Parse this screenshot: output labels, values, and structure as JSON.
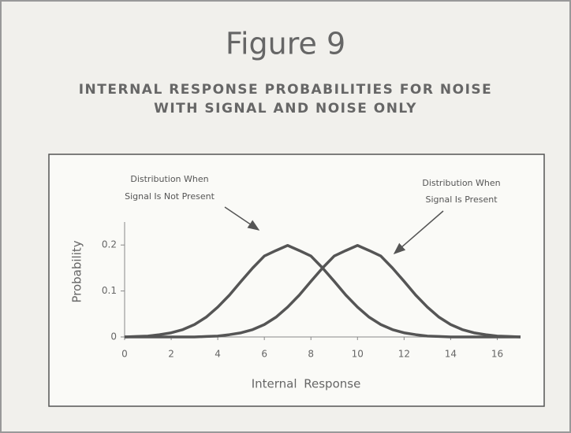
{
  "chart_data": {
    "type": "line",
    "title": "Figure 9",
    "subtitle": [
      "INTERNAL RESPONSE PROBABILITIES FOR NOISE",
      "WITH SIGNAL AND NOISE ONLY"
    ],
    "annotations": [
      [
        "Distribution When",
        "Signal Is Not Present"
      ],
      [
        "Distribution When",
        "Signal Is Present"
      ]
    ],
    "x_label": "Internal Response",
    "y_label": "Probability",
    "x": [
      0,
      0.5,
      1,
      1.5,
      2,
      2.5,
      3,
      3.5,
      4,
      4.5,
      5,
      5.5,
      6,
      6.5,
      7,
      7.5,
      8,
      8.5,
      9,
      9.5,
      10,
      10.5,
      11,
      11.5,
      12,
      12.5,
      13,
      13.5,
      14,
      14.5,
      15,
      15.5,
      16,
      16.5,
      17
    ],
    "series": [
      {
        "color": "#555555",
        "values": [
          0,
          0.001,
          0.002,
          0.005,
          0.009,
          0.016,
          0.027,
          0.043,
          0.065,
          0.091,
          0.121,
          0.15,
          0.176,
          0.188,
          0.199,
          0.188,
          0.176,
          0.15,
          0.121,
          0.091,
          0.065,
          0.043,
          0.027,
          0.016,
          0.009,
          0.005,
          0.002,
          0.001,
          0,
          0,
          0,
          0,
          0,
          0,
          0
        ]
      },
      {
        "color": "#555555",
        "values": [
          0,
          0,
          0,
          0,
          0,
          0,
          0,
          0.001,
          0.002,
          0.005,
          0.009,
          0.016,
          0.027,
          0.043,
          0.065,
          0.091,
          0.121,
          0.15,
          0.176,
          0.188,
          0.199,
          0.188,
          0.176,
          0.15,
          0.121,
          0.091,
          0.065,
          0.043,
          0.027,
          0.016,
          0.009,
          0.005,
          0.002,
          0.001,
          0
        ]
      }
    ],
    "xlim": [
      0,
      17
    ],
    "xticks": [
      0,
      2,
      4,
      6,
      8,
      10,
      12,
      14,
      16
    ],
    "ylim": [
      0,
      0.25
    ],
    "yticks": [
      0,
      0.1,
      0.2
    ]
  }
}
